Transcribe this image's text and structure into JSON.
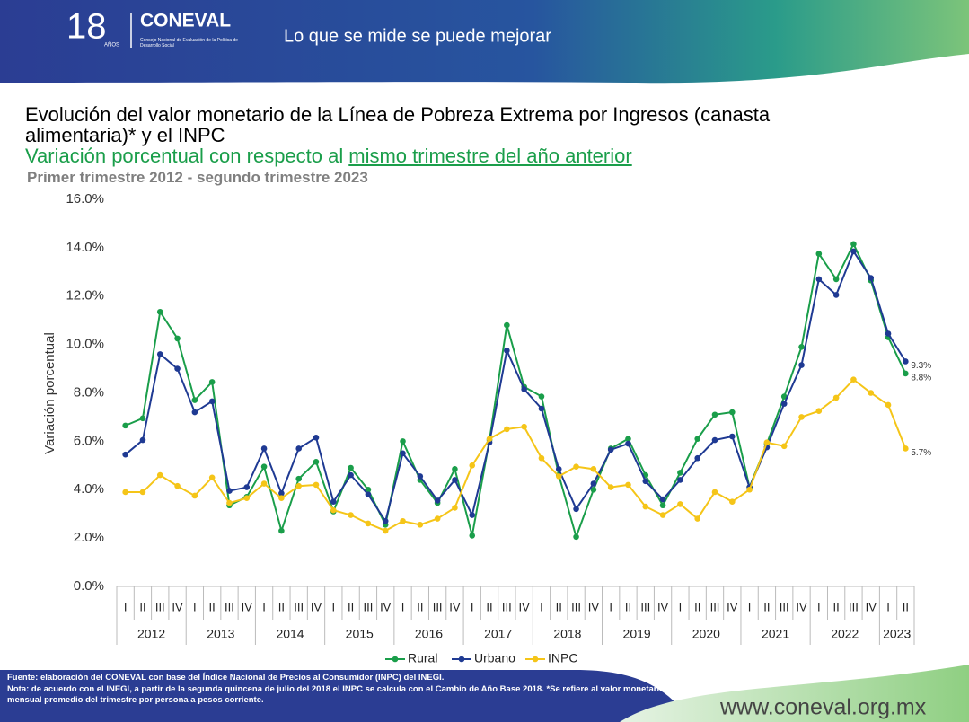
{
  "header": {
    "logo_number": "18",
    "logo_years": "AÑOS",
    "brand": "CONEVAL",
    "brand_sub": "Consejo Nacional de Evaluación de la Política de Desarrollo Social",
    "tagline": "Lo que se mide se puede mejorar"
  },
  "chart_data": {
    "type": "line",
    "title": "Evolución del valor monetario de la Línea de Pobreza Extrema por Ingresos (canasta alimentaria)* y el INPC",
    "subtitle": "Variación porcentual con respecto al",
    "subtitle_emphasis": "mismo trimestre del año anterior",
    "period": "Primer trimestre 2012 - segundo trimestre 2023",
    "ylabel": "Variación porcentual",
    "categories": [
      "I",
      "II",
      "III",
      "IV",
      "I",
      "II",
      "III",
      "IV",
      "I",
      "II",
      "III",
      "IV",
      "I",
      "II",
      "III",
      "IV",
      "I",
      "II",
      "III",
      "IV",
      "I",
      "II",
      "III",
      "IV",
      "I",
      "II",
      "III",
      "IV",
      "I",
      "II",
      "III",
      "IV",
      "I",
      "II",
      "III",
      "IV",
      "I",
      "II",
      "III",
      "IV",
      "I",
      "II",
      "III",
      "IV",
      "I",
      "II"
    ],
    "years": [
      "2012",
      "2013",
      "2014",
      "2015",
      "2016",
      "2017",
      "2018",
      "2019",
      "2020",
      "2021",
      "2022",
      "2023"
    ],
    "ylim": [
      0,
      16
    ],
    "yticks": [
      {
        "value": 0,
        "label": "0.0%"
      },
      {
        "value": 2,
        "label": "2.0%"
      },
      {
        "value": 4,
        "label": "4.0%"
      },
      {
        "value": 6,
        "label": "6.0%"
      },
      {
        "value": 8,
        "label": "8.0%"
      },
      {
        "value": 10,
        "label": "10.0%"
      },
      {
        "value": 12,
        "label": "12.0%"
      },
      {
        "value": 14,
        "label": "14.0%"
      },
      {
        "value": 16,
        "label": "16.0%"
      }
    ],
    "grid": false,
    "legend": "bottom",
    "series": [
      {
        "name": "Rural",
        "color": "#1a9e4a",
        "values": [
          6.65,
          6.95,
          11.35,
          10.25,
          7.7,
          8.45,
          3.35,
          3.7,
          4.95,
          2.3,
          4.45,
          5.15,
          3.1,
          4.9,
          4.0,
          2.55,
          6.0,
          4.4,
          3.45,
          4.85,
          2.1,
          6.05,
          10.8,
          8.25,
          7.85,
          4.6,
          2.05,
          4.0,
          5.7,
          6.1,
          4.6,
          3.35,
          4.7,
          6.1,
          7.1,
          7.2,
          4.1,
          5.9,
          7.85,
          9.9,
          13.75,
          12.7,
          14.15,
          12.65,
          10.3,
          8.8
        ],
        "value_labels": [
          null,
          null,
          null,
          null,
          null,
          null,
          null,
          null,
          null,
          null,
          null,
          null,
          null,
          null,
          null,
          null,
          null,
          null,
          null,
          null,
          null,
          null,
          null,
          null,
          null,
          null,
          null,
          null,
          null,
          null,
          null,
          null,
          null,
          null,
          null,
          null,
          null,
          null,
          null,
          null,
          null,
          null,
          null,
          null,
          null,
          "8.8%"
        ]
      },
      {
        "name": "Urbano",
        "color": "#1f3a93",
        "values": [
          5.45,
          6.05,
          9.6,
          9.0,
          7.2,
          7.65,
          3.95,
          4.1,
          5.7,
          3.85,
          5.7,
          6.15,
          3.5,
          4.6,
          3.8,
          2.7,
          5.5,
          4.55,
          3.55,
          4.4,
          2.95,
          5.95,
          9.75,
          8.15,
          7.35,
          4.85,
          3.2,
          4.25,
          5.65,
          5.9,
          4.35,
          3.6,
          4.4,
          5.3,
          6.05,
          6.2,
          4.1,
          5.75,
          7.55,
          9.15,
          12.7,
          12.05,
          13.85,
          12.75,
          10.45,
          9.3
        ],
        "value_labels": [
          null,
          null,
          null,
          null,
          null,
          null,
          null,
          null,
          null,
          null,
          null,
          null,
          null,
          null,
          null,
          null,
          null,
          null,
          null,
          null,
          null,
          null,
          null,
          null,
          null,
          null,
          null,
          null,
          null,
          null,
          null,
          null,
          null,
          null,
          null,
          null,
          null,
          null,
          null,
          null,
          null,
          null,
          null,
          null,
          null,
          "9.3%"
        ]
      },
      {
        "name": "INPC",
        "color": "#f5c518",
        "values": [
          3.9,
          3.9,
          4.6,
          4.15,
          3.75,
          4.5,
          3.45,
          3.65,
          4.25,
          3.65,
          4.15,
          4.2,
          3.15,
          2.95,
          2.6,
          2.3,
          2.7,
          2.55,
          2.8,
          3.25,
          5.0,
          6.1,
          6.5,
          6.6,
          5.3,
          4.55,
          4.95,
          4.85,
          4.1,
          4.2,
          3.3,
          2.95,
          3.4,
          2.8,
          3.9,
          3.5,
          4.0,
          5.95,
          5.8,
          7.0,
          7.25,
          7.8,
          8.55,
          8.0,
          7.5,
          5.7
        ],
        "value_labels": [
          null,
          null,
          null,
          null,
          null,
          null,
          null,
          null,
          null,
          null,
          null,
          null,
          null,
          null,
          null,
          null,
          null,
          null,
          null,
          null,
          null,
          null,
          null,
          null,
          null,
          null,
          null,
          null,
          null,
          null,
          null,
          null,
          null,
          null,
          null,
          null,
          null,
          null,
          null,
          null,
          null,
          null,
          null,
          null,
          null,
          "5.7%"
        ]
      }
    ]
  },
  "footer": {
    "source": "Fuente: elaboración del CONEVAL con base del Índice Nacional de Precios al Consumidor (INPC) del INEGI.",
    "note": "Nota: de acuerdo con el INEGI, a partir de la segunda quincena de julio del 2018 el INPC se calcula con el Cambio de Año Base 2018. *Se refiere al valor monetario mensual promedio del trimestre por persona a pesos corriente.",
    "url": "www.coneval.org.mx"
  }
}
